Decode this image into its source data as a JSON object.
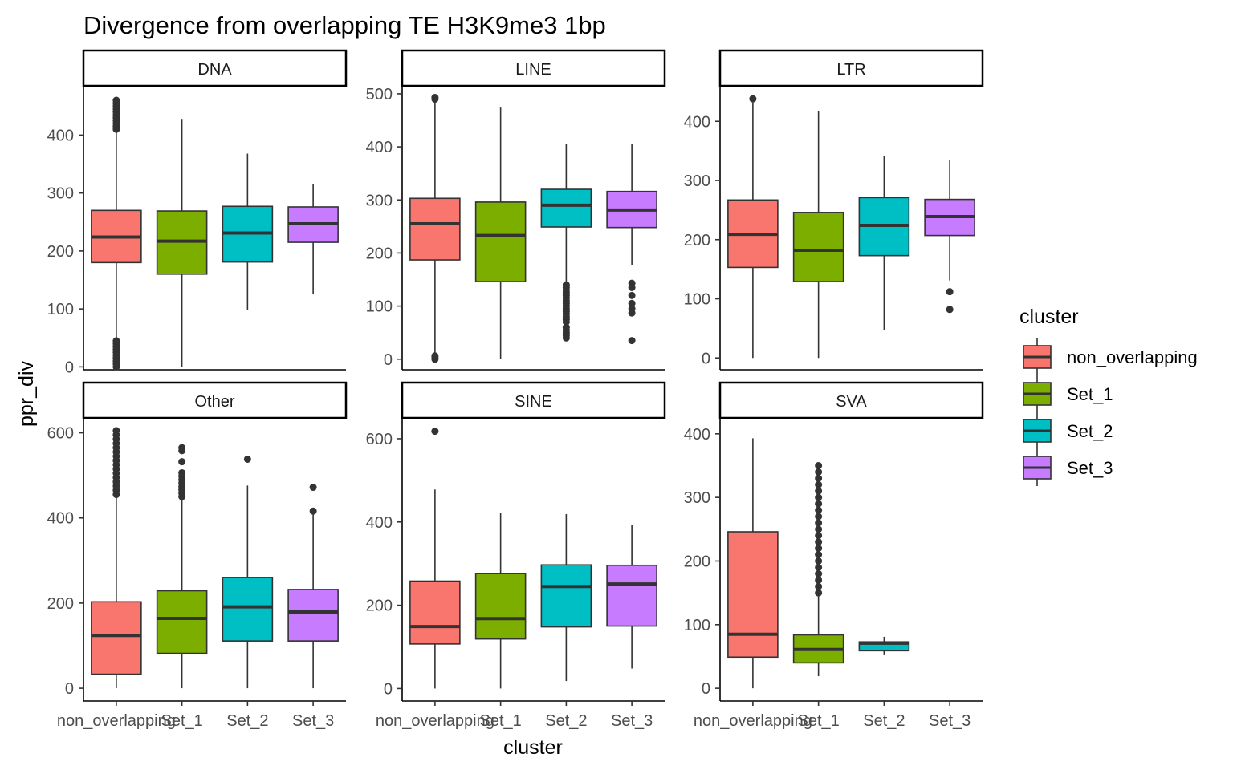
{
  "chart_data": {
    "type": "boxplot",
    "title": "Divergence from overlapping TE H3K9me3 1bp",
    "xlabel": "cluster",
    "ylabel": "ppr_div",
    "categories": [
      "non_overlapping",
      "Set_1",
      "Set_2",
      "Set_3"
    ],
    "legend": {
      "title": "cluster",
      "position": "right",
      "items": [
        {
          "label": "non_overlapping",
          "color": "#F8766D"
        },
        {
          "label": "Set_1",
          "color": "#7CAE00"
        },
        {
          "label": "Set_2",
          "color": "#00BFC4"
        },
        {
          "label": "Set_3",
          "color": "#C77CFF"
        }
      ]
    },
    "facets": [
      {
        "name": "DNA",
        "ylim": [
          -5,
          485
        ],
        "yticks": [
          0,
          100,
          200,
          300,
          400
        ],
        "boxes": [
          {
            "cluster": "non_overlapping",
            "lower": 0,
            "q1": 180,
            "median": 224,
            "q3": 270,
            "upper": 405,
            "outliers": [
              0,
              5,
              10,
              15,
              20,
              25,
              30,
              35,
              40,
              45,
              410,
              415,
              420,
              425,
              430,
              435,
              440,
              445,
              450,
              455,
              460
            ]
          },
          {
            "cluster": "Set_1",
            "lower": 0,
            "q1": 160,
            "median": 217,
            "q3": 269,
            "upper": 428,
            "outliers": []
          },
          {
            "cluster": "Set_2",
            "lower": 98,
            "q1": 181,
            "median": 231,
            "q3": 277,
            "upper": 368,
            "outliers": []
          },
          {
            "cluster": "Set_3",
            "lower": 125,
            "q1": 215,
            "median": 247,
            "q3": 276,
            "upper": 316,
            "outliers": []
          }
        ]
      },
      {
        "name": "LINE",
        "ylim": [
          -20,
          515
        ],
        "yticks": [
          0,
          100,
          200,
          300,
          400,
          500
        ],
        "boxes": [
          {
            "cluster": "non_overlapping",
            "lower": 10,
            "q1": 187,
            "median": 255,
            "q3": 303,
            "upper": 488,
            "outliers": [
              0,
              3,
              6,
              490,
              493
            ]
          },
          {
            "cluster": "Set_1",
            "lower": 0,
            "q1": 146,
            "median": 233,
            "q3": 296,
            "upper": 474,
            "outliers": []
          },
          {
            "cluster": "Set_2",
            "lower": 145,
            "q1": 249,
            "median": 290,
            "q3": 320,
            "upper": 405,
            "outliers": [
              40,
              45,
              50,
              55,
              60,
              70,
              75,
              80,
              85,
              90,
              95,
              100,
              105,
              110,
              115,
              120,
              125,
              130,
              135,
              140
            ]
          },
          {
            "cluster": "Set_3",
            "lower": 178,
            "q1": 248,
            "median": 281,
            "q3": 316,
            "upper": 405,
            "outliers": [
              35,
              87,
              95,
              105,
              120,
              135,
              143
            ]
          }
        ]
      },
      {
        "name": "LTR",
        "ylim": [
          -20,
          460
        ],
        "yticks": [
          0,
          100,
          200,
          300,
          400
        ],
        "boxes": [
          {
            "cluster": "non_overlapping",
            "lower": 0,
            "q1": 153,
            "median": 209,
            "q3": 267,
            "upper": 432,
            "outliers": [
              438
            ]
          },
          {
            "cluster": "Set_1",
            "lower": 0,
            "q1": 129,
            "median": 182,
            "q3": 246,
            "upper": 417,
            "outliers": []
          },
          {
            "cluster": "Set_2",
            "lower": 47,
            "q1": 173,
            "median": 224,
            "q3": 271,
            "upper": 342,
            "outliers": []
          },
          {
            "cluster": "Set_3",
            "lower": 131,
            "q1": 207,
            "median": 239,
            "q3": 268,
            "upper": 335,
            "outliers": [
              82,
              112
            ]
          }
        ]
      },
      {
        "name": "Other",
        "ylim": [
          -30,
          635
        ],
        "yticks": [
          0,
          200,
          400,
          600
        ],
        "boxes": [
          {
            "cluster": "non_overlapping",
            "lower": 0,
            "q1": 33,
            "median": 124,
            "q3": 203,
            "upper": 448,
            "outliers": [
              455,
              465,
              475,
              485,
              495,
              505,
              515,
              525,
              535,
              545,
              555,
              565,
              575,
              585,
              595,
              605
            ]
          },
          {
            "cluster": "Set_1",
            "lower": 0,
            "q1": 82,
            "median": 164,
            "q3": 229,
            "upper": 442,
            "outliers": [
              450,
              458,
              466,
              474,
              482,
              490,
              498,
              506,
              532,
              558,
              565
            ]
          },
          {
            "cluster": "Set_2",
            "lower": 0,
            "q1": 111,
            "median": 191,
            "q3": 260,
            "upper": 476,
            "outliers": [
              538
            ]
          },
          {
            "cluster": "Set_3",
            "lower": 0,
            "q1": 111,
            "median": 179,
            "q3": 232,
            "upper": 412,
            "outliers": [
              416,
              472
            ]
          }
        ]
      },
      {
        "name": "SINE",
        "ylim": [
          -30,
          650
        ],
        "yticks": [
          0,
          200,
          400,
          600
        ],
        "boxes": [
          {
            "cluster": "non_overlapping",
            "lower": 0,
            "q1": 107,
            "median": 149,
            "q3": 258,
            "upper": 478,
            "outliers": [
              618
            ]
          },
          {
            "cluster": "Set_1",
            "lower": 0,
            "q1": 119,
            "median": 168,
            "q3": 276,
            "upper": 421,
            "outliers": []
          },
          {
            "cluster": "Set_2",
            "lower": 18,
            "q1": 148,
            "median": 245,
            "q3": 297,
            "upper": 419,
            "outliers": []
          },
          {
            "cluster": "Set_3",
            "lower": 48,
            "q1": 150,
            "median": 251,
            "q3": 296,
            "upper": 392,
            "outliers": []
          }
        ]
      },
      {
        "name": "SVA",
        "ylim": [
          -20,
          425
        ],
        "yticks": [
          0,
          100,
          200,
          300,
          400
        ],
        "boxes": [
          {
            "cluster": "non_overlapping",
            "lower": 0,
            "q1": 49,
            "median": 85,
            "q3": 246,
            "upper": 393,
            "outliers": []
          },
          {
            "cluster": "Set_1",
            "lower": 19,
            "q1": 40,
            "median": 61,
            "q3": 84,
            "upper": 148,
            "outliers": [
              150,
              160,
              170,
              180,
              190,
              200,
              210,
              220,
              230,
              240,
              250,
              260,
              270,
              280,
              290,
              300,
              310,
              320,
              330,
              340,
              350
            ]
          },
          {
            "cluster": "Set_2",
            "lower": 52,
            "q1": 59,
            "median": 71,
            "q3": 73,
            "upper": 81,
            "outliers": []
          }
        ]
      }
    ]
  }
}
